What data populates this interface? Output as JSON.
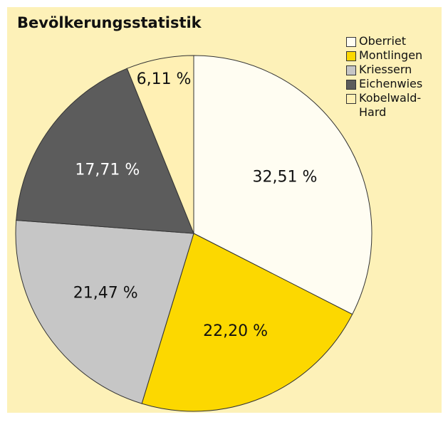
{
  "chart_data": {
    "type": "pie",
    "title": "Bevölkerungsstatistik",
    "categories": [
      "Oberriet",
      "Montlingen",
      "Kriessern",
      "Eichenwies",
      "Kobelwald-Hard"
    ],
    "values": [
      32.51,
      22.2,
      21.47,
      17.71,
      6.11
    ],
    "value_labels": [
      "32,51 %",
      "22,20 %",
      "21,47 %",
      "17,71 %",
      "6,11 %"
    ],
    "colors": [
      "#fffdf2",
      "#fcd800",
      "#c6c6c6",
      "#5c5c5c",
      "#fff0b4"
    ],
    "legend": "top-right"
  }
}
